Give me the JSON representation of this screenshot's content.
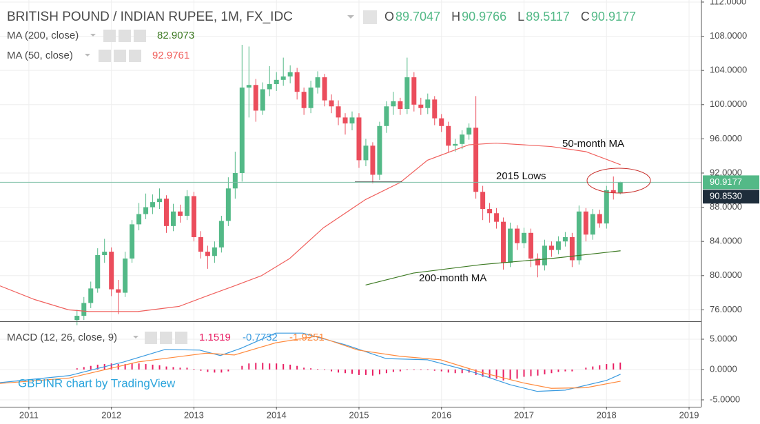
{
  "chart_data": {
    "type": "candlestick",
    "title": "BRITISH POUND / INDIAN RUPEE, 1M, FX_IDC",
    "ohlc_letters": [
      "O",
      "H",
      "L",
      "C"
    ],
    "x": [
      "2011-08",
      "2011-09",
      "2011-10",
      "2011-11",
      "2011-12",
      "2012-01",
      "2012-02",
      "2012-03",
      "2012-04",
      "2012-05",
      "2012-06",
      "2012-07",
      "2012-08",
      "2012-09",
      "2012-10",
      "2012-11",
      "2012-12",
      "2013-01",
      "2013-02",
      "2013-03",
      "2013-04",
      "2013-05",
      "2013-06",
      "2013-07",
      "2013-08",
      "2013-09",
      "2013-10",
      "2013-11",
      "2013-12",
      "2014-01",
      "2014-02",
      "2014-03",
      "2014-04",
      "2014-05",
      "2014-06",
      "2014-07",
      "2014-08",
      "2014-09",
      "2014-10",
      "2014-11",
      "2014-12",
      "2015-01",
      "2015-02",
      "2015-03",
      "2015-04",
      "2015-05",
      "2015-06",
      "2015-07",
      "2015-08",
      "2015-09",
      "2015-10",
      "2015-11",
      "2015-12",
      "2016-01",
      "2016-02",
      "2016-03",
      "2016-04",
      "2016-05",
      "2016-06",
      "2016-07",
      "2016-08",
      "2016-09",
      "2016-10",
      "2016-11",
      "2016-12",
      "2017-01",
      "2017-02",
      "2017-03",
      "2017-04",
      "2017-05",
      "2017-06",
      "2017-07",
      "2017-08",
      "2017-09",
      "2017-10",
      "2017-11",
      "2017-12",
      "2018-01",
      "2018-02",
      "2018-03"
    ],
    "open": [
      74.8,
      75.3,
      76.8,
      78.5,
      82.4,
      82.8,
      78.4,
      78.0,
      82.0,
      86.0,
      87.2,
      88.0,
      88.6,
      89.0,
      85.8,
      87.5,
      87.0,
      89.3,
      84.5,
      82.8,
      82.3,
      83.3,
      86.4,
      90.2,
      92.0,
      102.0,
      102.3,
      99.3,
      101.8,
      102.4,
      102.9,
      103.3,
      103.8,
      101.5,
      99.6,
      102.0,
      103.2,
      100.5,
      99.8,
      98.5,
      97.8,
      98.5,
      93.5,
      95.2,
      91.8,
      97.5,
      99.8,
      100.4,
      99.5,
      103.2,
      100.0,
      99.6,
      100.6,
      98.4,
      97.5,
      95.2,
      95.4,
      96.5,
      97.3,
      89.8,
      87.8,
      87.3,
      86.3,
      81.5,
      85.5,
      83.8,
      85.0,
      82.0,
      81.2,
      83.5,
      83.0,
      84.0,
      84.5,
      81.8,
      87.5,
      84.8,
      87.2,
      86.1,
      90.0,
      89.7047
    ],
    "high": [
      76.0,
      77.5,
      79.3,
      83.2,
      84.3,
      83.3,
      79.5,
      82.8,
      86.5,
      88.5,
      89.6,
      89.5,
      90.2,
      89.4,
      88.4,
      88.3,
      90.0,
      89.8,
      85.2,
      83.5,
      84.0,
      87.0,
      91.5,
      94.5,
      107.0,
      106.8,
      103.0,
      102.6,
      104.5,
      103.8,
      105.5,
      104.6,
      104.3,
      102.0,
      102.8,
      103.9,
      103.6,
      101.2,
      100.5,
      99.0,
      99.2,
      99.0,
      96.0,
      95.6,
      98.0,
      100.4,
      101.5,
      100.8,
      105.5,
      103.8,
      100.8,
      101.3,
      101.0,
      98.9,
      98.0,
      96.0,
      97.0,
      97.8,
      101.0,
      90.5,
      88.5,
      87.9,
      86.8,
      86.2,
      85.9,
      85.6,
      85.5,
      82.6,
      84.2,
      84.0,
      84.6,
      85.1,
      85.0,
      88.2,
      87.9,
      87.8,
      87.7,
      90.5,
      91.6,
      90.9766
    ],
    "low": [
      74.2,
      74.8,
      76.2,
      78.0,
      81.5,
      77.6,
      75.5,
      77.5,
      81.5,
      85.3,
      86.6,
      87.2,
      87.8,
      85.0,
      85.2,
      86.2,
      86.5,
      84.0,
      82.0,
      80.8,
      81.5,
      82.7,
      85.8,
      89.0,
      91.0,
      98.5,
      98.0,
      98.8,
      101.0,
      101.6,
      102.2,
      102.5,
      100.6,
      98.8,
      99.0,
      101.3,
      99.8,
      99.0,
      97.6,
      96.5,
      97.0,
      92.6,
      92.8,
      90.8,
      91.2,
      96.7,
      98.8,
      98.8,
      98.9,
      99.2,
      98.8,
      98.9,
      97.6,
      96.8,
      94.4,
      94.5,
      94.8,
      95.9,
      89.0,
      86.5,
      86.2,
      85.5,
      80.7,
      81.0,
      83.0,
      83.2,
      81.0,
      79.8,
      80.6,
      82.2,
      82.5,
      83.4,
      81.0,
      81.3,
      84.0,
      84.2,
      85.6,
      85.5,
      88.9,
      89.5117
    ],
    "close": [
      75.3,
      76.8,
      78.5,
      82.4,
      82.8,
      78.4,
      78.0,
      82.0,
      86.0,
      87.2,
      88.0,
      88.6,
      89.0,
      85.8,
      87.5,
      87.0,
      89.3,
      84.5,
      82.8,
      82.3,
      83.3,
      86.4,
      90.2,
      92.0,
      102.0,
      102.3,
      99.3,
      101.8,
      102.4,
      102.9,
      103.3,
      103.8,
      101.5,
      99.6,
      102.0,
      103.2,
      100.5,
      99.8,
      98.5,
      97.8,
      98.5,
      93.5,
      95.2,
      91.8,
      97.5,
      99.8,
      100.4,
      99.5,
      103.2,
      100.0,
      99.6,
      100.6,
      98.4,
      97.5,
      95.2,
      95.4,
      96.5,
      97.3,
      89.8,
      87.8,
      87.3,
      86.3,
      81.5,
      85.5,
      83.8,
      85.0,
      82.0,
      81.2,
      83.5,
      83.0,
      84.0,
      84.5,
      81.8,
      87.5,
      84.8,
      87.2,
      86.1,
      90.0,
      89.7047,
      90.9177
    ],
    "up_color": "#53b987",
    "down_color": "#eb4d5c",
    "xlim": [
      2010.65,
      2019.15
    ],
    "xticks": [
      2011,
      2012,
      2013,
      2014,
      2015,
      2016,
      2017,
      2018,
      2019
    ],
    "ylim": [
      74.66,
      112.24
    ],
    "yticks": [
      {
        "value": 112,
        "label": "112.0000"
      },
      {
        "value": 108,
        "label": "108.0000"
      },
      {
        "value": 104,
        "label": "104.0000"
      },
      {
        "value": 100,
        "label": "100.0000"
      },
      {
        "value": 96,
        "label": "96.0000"
      },
      {
        "value": 92,
        "label": "92.0000"
      },
      {
        "value": 88,
        "label": "88.0000"
      },
      {
        "value": 84,
        "label": "84.0000"
      },
      {
        "value": 80,
        "label": "80.0000"
      },
      {
        "value": 76,
        "label": "76.0000"
      }
    ],
    "price_line_color": "#7dbfa6",
    "marker_label": {
      "value": 90.853,
      "label": "90.8530"
    },
    "overlays": [
      {
        "name": "MA (200, close)",
        "annotation": "200-month MA",
        "color": "#3d7a23",
        "x": [
          2015.08,
          2015.66,
          2016.49,
          2017.33,
          2018.17
        ],
        "values": [
          78.9,
          80.3,
          81.3,
          82.0,
          82.9073
        ]
      },
      {
        "name": "MA (50, close)",
        "annotation": "50-month MA",
        "color": "#f0605d",
        "x": [
          2010.65,
          2011.07,
          2011.48,
          2011.73,
          2012.32,
          2012.82,
          2013.15,
          2013.49,
          2013.82,
          2014.16,
          2014.57,
          2015.08,
          2015.5,
          2015.83,
          2016.33,
          2016.66,
          2017.33,
          2017.75,
          2018.17
        ],
        "values": [
          78.8,
          77.2,
          76.0,
          75.8,
          75.8,
          76.4,
          77.6,
          78.8,
          80.0,
          82.0,
          85.6,
          88.9,
          90.9,
          93.5,
          95.3,
          95.5,
          95.1,
          94.5,
          92.9761
        ]
      }
    ],
    "lows_line": {
      "text": "2015 Lows",
      "level": 90.95,
      "x": [
        2014.95,
        2015.52
      ]
    },
    "watermark": "GBPINR chart by TradingView",
    "macd": {
      "title": "MACD (12, 26, close, 9)",
      "ylim": [
        -6.14,
        7.84
      ],
      "yticks": [
        {
          "value": 5,
          "label": "5.0000"
        },
        {
          "value": 0,
          "label": "0.0000"
        },
        {
          "value": -5,
          "label": "-5.0000"
        }
      ],
      "histogram": {
        "color": "#e91e63",
        "values": [
          0.2,
          0.4,
          0.6,
          0.8,
          0.9,
          1.0,
          0.9,
          0.9,
          1.0,
          1.0,
          0.9,
          0.8,
          0.7,
          0.5,
          0.4,
          0.3,
          0.3,
          0.1,
          -0.2,
          -0.4,
          -0.5,
          -0.5,
          -0.3,
          0.0,
          0.6,
          1.0,
          1.1,
          1.1,
          1.0,
          1.0,
          0.9,
          0.8,
          0.6,
          0.3,
          0.2,
          0.1,
          -0.1,
          -0.3,
          -0.5,
          -0.6,
          -0.7,
          -0.9,
          -0.9,
          -1.0,
          -0.8,
          -0.6,
          -0.4,
          -0.3,
          -0.1,
          -0.1,
          -0.1,
          -0.1,
          -0.2,
          -0.3,
          -0.5,
          -0.6,
          -0.6,
          -0.5,
          -0.9,
          -1.2,
          -1.4,
          -1.5,
          -1.8,
          -1.6,
          -1.5,
          -1.2,
          -1.1,
          -1.0,
          -0.8,
          -0.6,
          -0.4,
          -0.3,
          -0.3,
          0.0,
          0.3,
          0.5,
          0.7,
          0.9,
          1.0,
          1.1519
        ]
      },
      "series": [
        {
          "color": "#3a9be0",
          "x": [
            2010.65,
            2011.49,
            2012.15,
            2012.65,
            2013.07,
            2013.32,
            2013.57,
            2013.99,
            2014.32,
            2014.83,
            2015.33,
            2015.83,
            2016.33,
            2016.83,
            2017.16,
            2017.5,
            2018.0,
            2018.17
          ],
          "values": [
            -2.16,
            -1.0,
            1.25,
            3.3,
            3.2,
            2.3,
            3.5,
            6.0,
            6.0,
            4.1,
            1.8,
            1.6,
            -0.2,
            -2.5,
            -3.6,
            -3.4,
            -1.8,
            -0.7732
          ]
        },
        {
          "color": "#ff8a3d",
          "x": [
            2010.65,
            2011.49,
            2012.32,
            2013.15,
            2013.49,
            2013.99,
            2014.49,
            2014.99,
            2015.49,
            2015.99,
            2016.49,
            2016.99,
            2017.33,
            2017.75,
            2018.17
          ],
          "values": [
            -2.3,
            -1.4,
            1.25,
            2.7,
            2.4,
            4.4,
            5.5,
            3.2,
            2.2,
            1.6,
            -0.5,
            -2.2,
            -3.1,
            -3.0,
            -1.9251
          ]
        }
      ]
    }
  }
}
